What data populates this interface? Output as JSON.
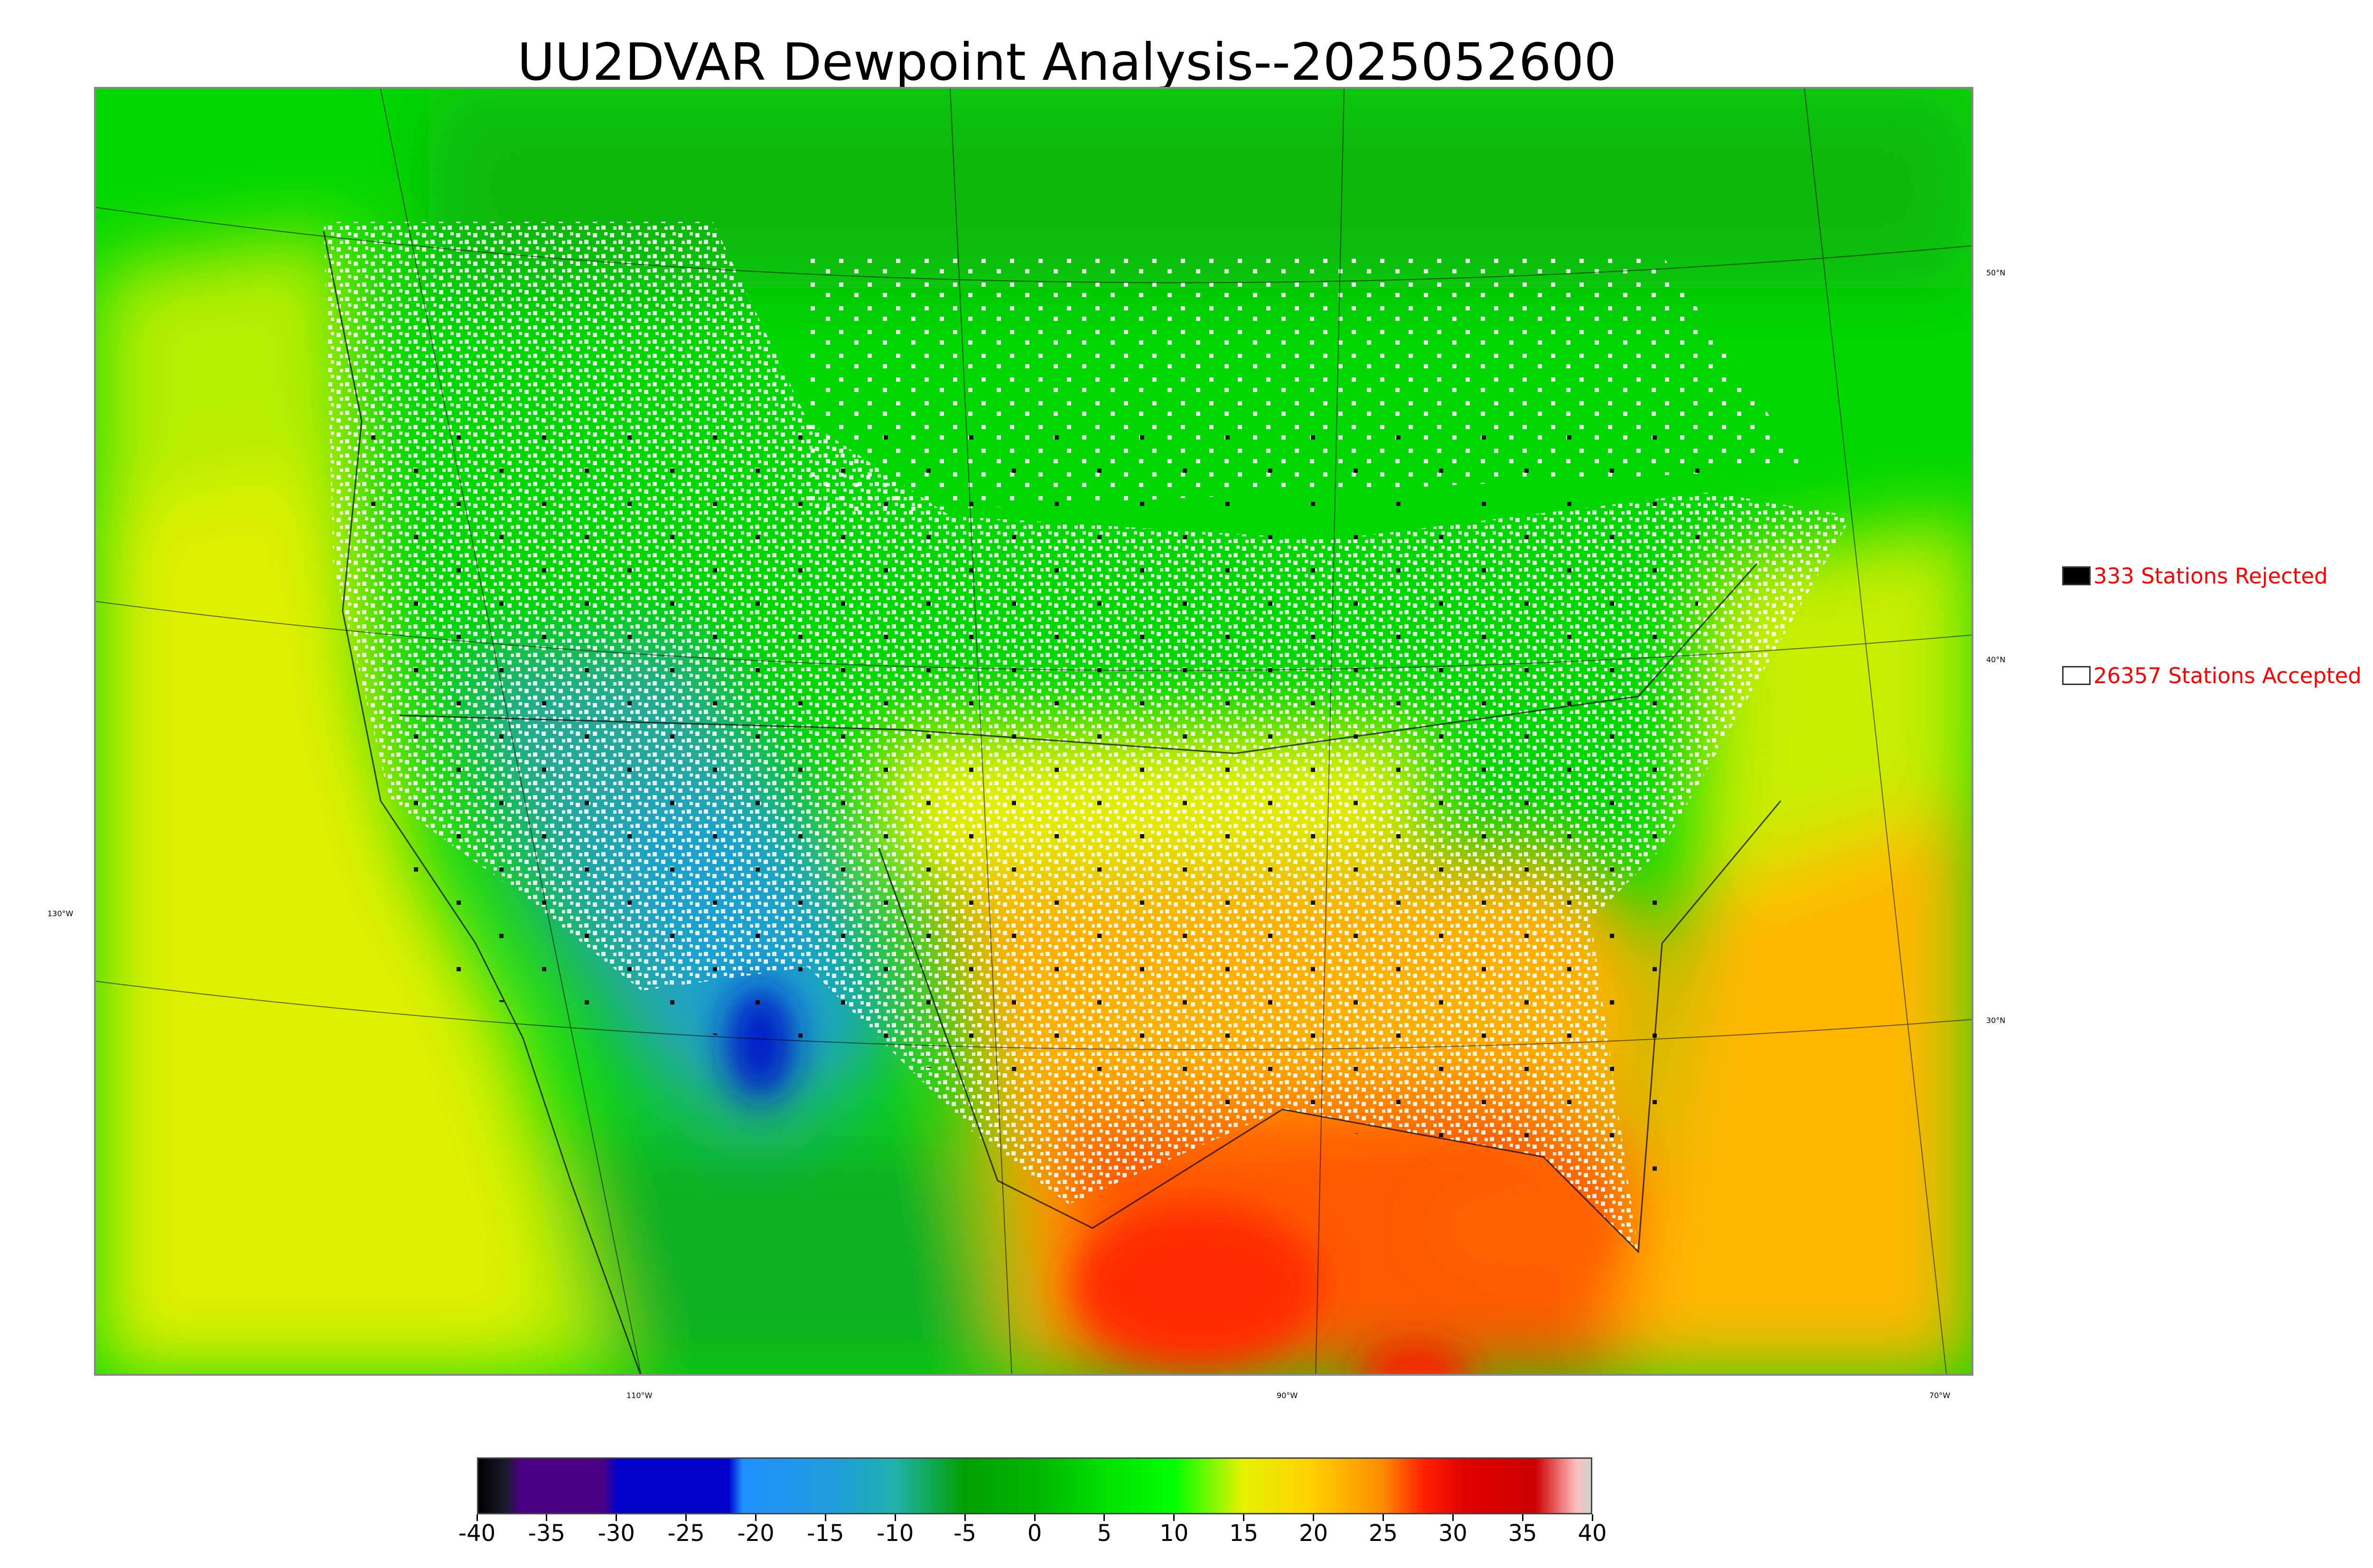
{
  "title": "UU2DVAR Dewpoint Analysis--2025052600",
  "graticule": {
    "lat_labels": [
      "50°N",
      "40°N",
      "30°N"
    ],
    "lon_labels": [
      "130°W",
      "110°W",
      "90°W",
      "70°W"
    ]
  },
  "legend": {
    "rejected": {
      "label": "333 Stations Rejected",
      "color": "#000000"
    },
    "accepted": {
      "label": "26357 Stations Accepted",
      "color": "#ffffff"
    }
  },
  "colorbar": {
    "ticks": [
      "-40",
      "-35",
      "-30",
      "-25",
      "-20",
      "-15",
      "-10",
      "-5",
      "0",
      "5",
      "10",
      "15",
      "20",
      "25",
      "30",
      "35",
      "40"
    ],
    "range": [
      -40,
      40
    ],
    "stops": [
      {
        "v": -40,
        "c": "#000000"
      },
      {
        "v": -38,
        "c": "#1a1a2e"
      },
      {
        "v": -37,
        "c": "#4b0082"
      },
      {
        "v": -31,
        "c": "#4b0082"
      },
      {
        "v": -30,
        "c": "#0000cd"
      },
      {
        "v": -22,
        "c": "#0000cd"
      },
      {
        "v": -21,
        "c": "#1e90ff"
      },
      {
        "v": -14,
        "c": "#1e9fd8"
      },
      {
        "v": -10,
        "c": "#20b2aa"
      },
      {
        "v": -5,
        "c": "#00a000"
      },
      {
        "v": 0,
        "c": "#00b400"
      },
      {
        "v": 5,
        "c": "#00e000"
      },
      {
        "v": 10,
        "c": "#00ff00"
      },
      {
        "v": 15,
        "c": "#e6f200"
      },
      {
        "v": 20,
        "c": "#ffd000"
      },
      {
        "v": 25,
        "c": "#ff8c00"
      },
      {
        "v": 28,
        "c": "#ff2000"
      },
      {
        "v": 31,
        "c": "#e00000"
      },
      {
        "v": 36,
        "c": "#cc0000"
      },
      {
        "v": 38,
        "c": "#f08080"
      },
      {
        "v": 39,
        "c": "#ffc0c0"
      },
      {
        "v": 40,
        "c": "#d0d0d0"
      }
    ]
  }
}
